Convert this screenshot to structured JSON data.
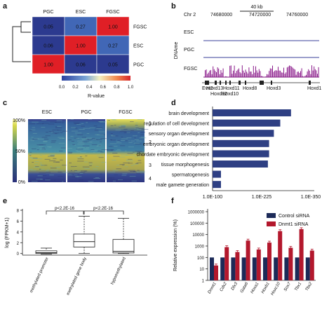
{
  "panel_labels": [
    "a",
    "b",
    "c",
    "d",
    "e",
    "f"
  ],
  "panel_a": {
    "columns": [
      "PGC",
      "ESC",
      "FGSC"
    ],
    "rows": [
      "FGSC",
      "ESC",
      "PGC"
    ],
    "matrix": [
      [
        "0.05",
        "0.27",
        "1.00"
      ],
      [
        "0.06",
        "1.00",
        "0.27"
      ],
      [
        "1.00",
        "0.06",
        "0.05"
      ]
    ],
    "colorbar_ticks": [
      "0.0",
      "0.2",
      "0.4",
      "0.6",
      "0.8",
      "1.0"
    ],
    "colorbar_label": "R-value"
  },
  "panel_b": {
    "chr": "Chr 2",
    "scale": "40 kb",
    "coords": [
      "74680000",
      "74720000",
      "74760000"
    ],
    "ylabel": "DNAme",
    "tracks": [
      "ESC",
      "PGC",
      "FGSC"
    ],
    "genes": [
      "Evx2",
      "Hoxd13",
      "Hoxd12",
      "Hoxd11",
      "Hoxd10",
      "Hoxd8",
      "Hoxd3",
      "Hoxd1"
    ]
  },
  "panel_c": {
    "columns": [
      "ESC",
      "PGC",
      "FGSC"
    ],
    "yticks": [
      "100%",
      "50%",
      "0%"
    ],
    "clusters": [
      "1",
      "2",
      "3",
      "4"
    ]
  },
  "panel_d": {
    "chart_data": {
      "type": "bar",
      "orientation": "horizontal",
      "categories": [
        "brain development",
        "regulation of cell development",
        "sensory organ development",
        "embryonic organ development",
        "chordate embryonic development",
        "tissue morphogenesis",
        "spermatogenesis",
        "male gamete generation"
      ],
      "values_log10_neg": [
        295,
        268,
        252,
        240,
        240,
        237,
        110,
        110
      ],
      "xticks": [
        "1.0E-100",
        "1.0E-225",
        "1.0E-350"
      ],
      "xlim": [
        100,
        350
      ],
      "color": "#2e3f83"
    }
  },
  "panel_e": {
    "chart_data": {
      "type": "box",
      "categories": [
        "methylated promoter",
        "methylated gene body",
        "hypomethylated"
      ],
      "ylabel": "log (FPKM+1)",
      "yticks": [
        "0",
        "2",
        "4",
        "6",
        "8"
      ],
      "ylim": [
        -0.3,
        8
      ],
      "boxes": [
        {
          "min": -0.1,
          "q1": 0.0,
          "median": 0.15,
          "q3": 0.5,
          "max": 1.0
        },
        {
          "min": 0.0,
          "q1": 1.2,
          "median": 2.2,
          "q3": 3.6,
          "max": 6.9
        },
        {
          "min": 0.0,
          "q1": 0.1,
          "median": 0.4,
          "q3": 2.6,
          "max": 6.5
        }
      ],
      "annotations": [
        "p<2.2E-16",
        "p<2.2E-16"
      ]
    }
  },
  "panel_f": {
    "chart_data": {
      "type": "bar",
      "scale": "log",
      "ylabel": "Relative expression (%)",
      "yticks": [
        "1",
        "10",
        "100",
        "1000",
        "10000",
        "100000",
        "1000000"
      ],
      "categories": [
        "Dnmt1",
        "Cdx2",
        "Dlx3",
        "Gata6",
        "Hoxa1",
        "Hoxb1",
        "Hoxc10",
        "Sox7",
        "Tbx1",
        "Tbx2"
      ],
      "series": [
        {
          "name": "Control siRNA",
          "color": "#1c2a58",
          "values": [
            100,
            100,
            100,
            100,
            100,
            100,
            100,
            100,
            100,
            100
          ]
        },
        {
          "name": "Dnmt1 siRNA",
          "color": "#b3182d",
          "values": [
            20,
            800,
            300,
            3000,
            500,
            2000,
            20000,
            700,
            30000,
            400
          ]
        }
      ]
    }
  }
}
